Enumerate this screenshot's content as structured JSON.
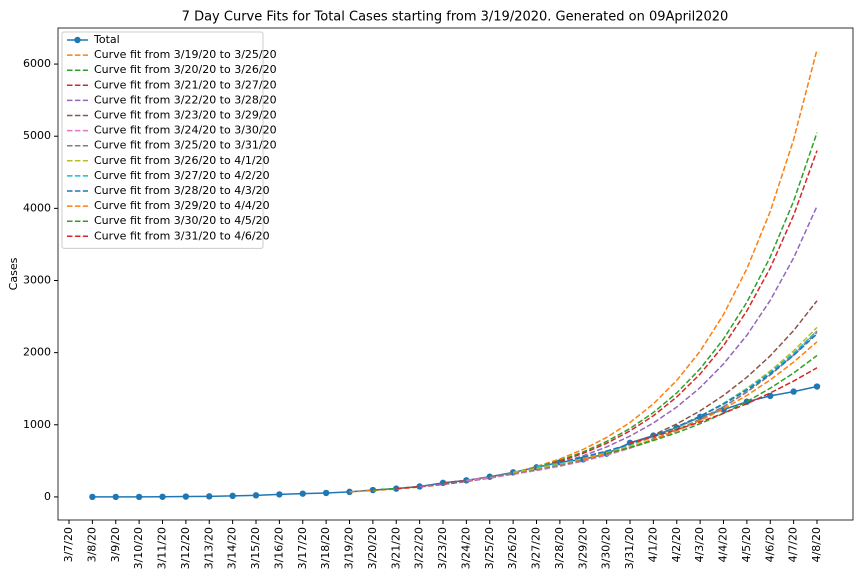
{
  "chart_data": {
    "type": "line",
    "title": "7 Day Curve Fits for Total Cases starting from 3/19/2020. Generated on 09April2020",
    "ylabel": "Cases",
    "categories": [
      "3/7/20",
      "3/8/20",
      "3/9/20",
      "3/10/20",
      "3/11/20",
      "3/12/20",
      "3/13/20",
      "3/14/20",
      "3/15/20",
      "3/16/20",
      "3/17/20",
      "3/18/20",
      "3/19/20",
      "3/20/20",
      "3/21/20",
      "3/22/20",
      "3/23/20",
      "3/24/20",
      "3/25/20",
      "3/26/20",
      "3/27/20",
      "3/28/20",
      "3/29/20",
      "3/30/20",
      "3/31/20",
      "4/1/20",
      "4/2/20",
      "4/3/20",
      "4/4/20",
      "4/5/20",
      "4/6/20",
      "4/7/20",
      "4/8/20"
    ],
    "ylim": [
      -320,
      6500
    ],
    "yticks": [
      0,
      1000,
      2000,
      3000,
      4000,
      5000,
      6000
    ],
    "legend": "upper left",
    "series": [
      {
        "name": "Total",
        "color": "#1f77b4",
        "linestyle": "solid",
        "marker": "o",
        "values": [
          null,
          0,
          0,
          0,
          2,
          5,
          8,
          15,
          22,
          35,
          45,
          55,
          70,
          95,
          115,
          145,
          195,
          230,
          280,
          340,
          410,
          480,
          520,
          600,
          750,
          850,
          960,
          1110,
          1210,
          1320,
          1400,
          1460,
          1530
        ]
      },
      {
        "name": "Curve fit from 3/19/20 to 3/25/20",
        "color": "#ff7f0e",
        "linestyle": "dashed",
        "values": [
          null,
          null,
          null,
          null,
          null,
          null,
          null,
          null,
          null,
          null,
          null,
          null,
          70,
          87.6,
          109.6,
          137.1,
          171.6,
          214.7,
          268.7,
          336,
          421,
          526,
          659,
          824,
          1031,
          1290,
          1615,
          2020,
          2528,
          3163,
          3958,
          4953,
          6200
        ]
      },
      {
        "name": "Curve fit from 3/20/20 to 3/26/20",
        "color": "#2ca02c",
        "linestyle": "dashed",
        "values": [
          null,
          null,
          null,
          null,
          null,
          null,
          null,
          null,
          null,
          null,
          null,
          null,
          null,
          95,
          117,
          144.3,
          177.9,
          219.3,
          270.3,
          333.2,
          410.7,
          506,
          624,
          769,
          948,
          1169,
          1441,
          1776,
          2189,
          2698,
          3326,
          4100,
          5050
        ]
      },
      {
        "name": "Curve fit from 3/21/20 to 3/27/20",
        "color": "#d62728",
        "linestyle": "dashed",
        "values": [
          null,
          null,
          null,
          null,
          null,
          null,
          null,
          null,
          null,
          null,
          null,
          null,
          null,
          null,
          115,
          141.5,
          174.1,
          214.2,
          263.6,
          324.3,
          399,
          491,
          604,
          743,
          915,
          1125,
          1385,
          1704,
          2096,
          2579,
          3173,
          3904,
          4800
        ]
      },
      {
        "name": "Curve fit from 3/22/20 to 3/28/20",
        "color": "#9467bd",
        "linestyle": "dashed",
        "values": [
          null,
          null,
          null,
          null,
          null,
          null,
          null,
          null,
          null,
          null,
          null,
          null,
          null,
          null,
          null,
          145,
          176.3,
          214.4,
          260.7,
          317,
          385.5,
          468.8,
          570,
          693,
          843,
          1025,
          1246,
          1515,
          1843,
          2241,
          2725,
          3313,
          4030
        ]
      },
      {
        "name": "Curve fit from 3/23/20 to 3/29/20",
        "color": "#8c564b",
        "linestyle": "dashed",
        "values": [
          null,
          null,
          null,
          null,
          null,
          null,
          null,
          null,
          null,
          null,
          null,
          null,
          null,
          null,
          null,
          null,
          195,
          229.9,
          271,
          319.6,
          376.8,
          444.2,
          523.7,
          617.5,
          728,
          858,
          1012,
          1193,
          1407,
          1659,
          1956,
          2306,
          2719
        ]
      },
      {
        "name": "Curve fit from 3/24/20 to 3/30/20",
        "color": "#e377c2",
        "linestyle": "dashed",
        "values": [
          null,
          null,
          null,
          null,
          null,
          null,
          null,
          null,
          null,
          null,
          null,
          null,
          null,
          null,
          null,
          null,
          null,
          230,
          268,
          313,
          365,
          425,
          496,
          578,
          674,
          786,
          916,
          1068,
          1245,
          1452,
          1693,
          1973,
          2300
        ]
      },
      {
        "name": "Curve fit from 3/25/20 to 3/31/20",
        "color": "#7f7f7f",
        "linestyle": "dashed",
        "values": [
          null,
          null,
          null,
          null,
          null,
          null,
          null,
          null,
          null,
          null,
          null,
          null,
          null,
          null,
          null,
          null,
          null,
          null,
          280,
          325,
          378,
          439,
          510,
          592,
          688,
          799,
          928,
          1078,
          1252,
          1455,
          1690,
          1963,
          2280
        ]
      },
      {
        "name": "Curve fit from 3/26/20 to 4/1/20",
        "color": "#bcbd22",
        "linestyle": "dashed",
        "values": [
          null,
          null,
          null,
          null,
          null,
          null,
          null,
          null,
          null,
          null,
          null,
          null,
          null,
          null,
          null,
          null,
          null,
          null,
          null,
          340,
          394,
          458,
          531,
          616,
          715,
          830,
          963,
          1117,
          1296,
          1504,
          1745,
          2025,
          2350
        ]
      },
      {
        "name": "Curve fit from 3/27/20 to 4/2/20",
        "color": "#17becf",
        "linestyle": "dashed",
        "values": [
          null,
          null,
          null,
          null,
          null,
          null,
          null,
          null,
          null,
          null,
          null,
          null,
          null,
          null,
          null,
          null,
          null,
          null,
          null,
          null,
          410,
          473,
          547,
          631,
          729,
          841,
          971,
          1121,
          1295,
          1495,
          1726,
          1993,
          2300
        ]
      },
      {
        "name": "Curve fit from 3/28/20 to 4/3/20",
        "color": "#1f77b4",
        "linestyle": "dashed",
        "values": [
          null,
          null,
          null,
          null,
          null,
          null,
          null,
          null,
          null,
          null,
          null,
          null,
          null,
          null,
          null,
          null,
          null,
          null,
          null,
          null,
          null,
          480,
          553,
          636,
          732,
          843,
          970,
          1117,
          1286,
          1480,
          1704,
          1962,
          2260
        ]
      },
      {
        "name": "Curve fit from 3/29/20 to 4/4/20",
        "color": "#ff7f0e",
        "linestyle": "dashed",
        "values": [
          null,
          null,
          null,
          null,
          null,
          null,
          null,
          null,
          null,
          null,
          null,
          null,
          null,
          null,
          null,
          null,
          null,
          null,
          null,
          null,
          null,
          null,
          520,
          599,
          691,
          797,
          918,
          1059,
          1220,
          1407,
          1622,
          1869,
          2150
        ]
      },
      {
        "name": "Curve fit from 3/30/20 to 4/5/20",
        "color": "#2ca02c",
        "linestyle": "dashed",
        "values": [
          null,
          null,
          null,
          null,
          null,
          null,
          null,
          null,
          null,
          null,
          null,
          null,
          null,
          null,
          null,
          null,
          null,
          null,
          null,
          null,
          null,
          null,
          null,
          600,
          684,
          781,
          890,
          1015,
          1158,
          1321,
          1507,
          1718,
          1960
        ]
      },
      {
        "name": "Curve fit from 3/31/20 to 4/6/20",
        "color": "#d62728",
        "linestyle": "dashed",
        "values": [
          null,
          null,
          null,
          null,
          null,
          null,
          null,
          null,
          null,
          null,
          null,
          null,
          null,
          null,
          null,
          null,
          null,
          null,
          null,
          null,
          null,
          null,
          null,
          null,
          750,
          836,
          932,
          1039,
          1159,
          1292,
          1441,
          1606,
          1790
        ]
      }
    ]
  }
}
